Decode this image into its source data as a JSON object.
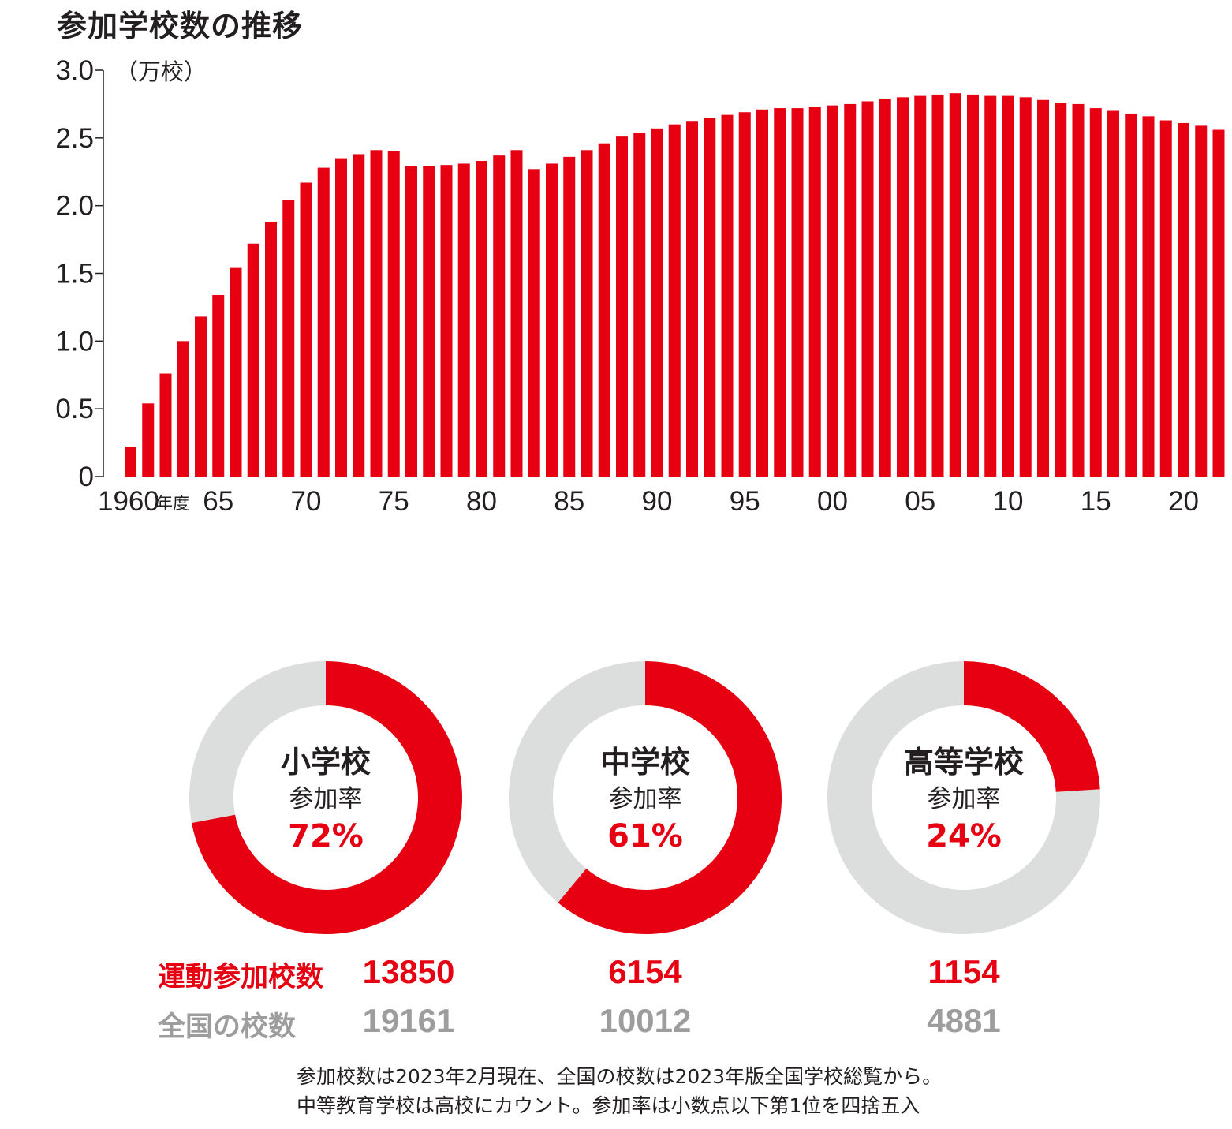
{
  "chart_data": [
    {
      "type": "bar",
      "title": "参加学校数の推移",
      "unit": "（万校）",
      "xlabel_suffix": "年度",
      "ylim": [
        0,
        3.0
      ],
      "yticks": [
        "0",
        "0.5",
        "1.0",
        "1.5",
        "2.0",
        "2.5",
        "3.0"
      ],
      "xtick_labels": [
        "1960",
        "65",
        "70",
        "75",
        "80",
        "85",
        "90",
        "95",
        "00",
        "05",
        "10",
        "15",
        "20"
      ],
      "categories": [
        1960,
        1961,
        1962,
        1963,
        1964,
        1965,
        1966,
        1967,
        1968,
        1969,
        1970,
        1971,
        1972,
        1973,
        1974,
        1975,
        1976,
        1977,
        1978,
        1979,
        1980,
        1981,
        1982,
        1983,
        1984,
        1985,
        1986,
        1987,
        1988,
        1989,
        1990,
        1991,
        1992,
        1993,
        1994,
        1995,
        1996,
        1997,
        1998,
        1999,
        2000,
        2001,
        2002,
        2003,
        2004,
        2005,
        2006,
        2007,
        2008,
        2009,
        2010,
        2011,
        2012,
        2013,
        2014,
        2015,
        2016,
        2017,
        2018,
        2019,
        2020,
        2021,
        2022
      ],
      "values": [
        0.22,
        0.54,
        0.76,
        1.0,
        1.18,
        1.34,
        1.54,
        1.72,
        1.88,
        2.04,
        2.17,
        2.28,
        2.35,
        2.38,
        2.41,
        2.4,
        2.29,
        2.29,
        2.3,
        2.31,
        2.33,
        2.37,
        2.41,
        2.27,
        2.31,
        2.36,
        2.41,
        2.46,
        2.51,
        2.54,
        2.57,
        2.6,
        2.62,
        2.65,
        2.67,
        2.69,
        2.71,
        2.72,
        2.72,
        2.73,
        2.74,
        2.75,
        2.77,
        2.79,
        2.8,
        2.81,
        2.82,
        2.83,
        2.82,
        2.81,
        2.81,
        2.8,
        2.78,
        2.76,
        2.75,
        2.72,
        2.7,
        2.68,
        2.66,
        2.63,
        2.61,
        2.59,
        2.56
      ],
      "color": "#e60012"
    },
    {
      "type": "pie",
      "slices": [
        {
          "name": "小学校",
          "rate_label": "参加率",
          "rate_text": "72%",
          "rate": 0.72,
          "participating": "13850",
          "total": "19161"
        },
        {
          "name": "中学校",
          "rate_label": "参加率",
          "rate_text": "61%",
          "rate": 0.61,
          "participating": "6154",
          "total": "10012"
        },
        {
          "name": "高等学校",
          "rate_label": "参加率",
          "rate_text": "24%",
          "rate": 0.24,
          "participating": "1154",
          "total": "4881"
        }
      ],
      "colors": {
        "participating": "#e60012",
        "remaining": "#dcdddd"
      }
    }
  ],
  "rows": {
    "participating_label": "運動参加校数",
    "total_label": "全国の校数"
  },
  "note": {
    "line1": "参加校数は2023年2月現在、全国の校数は2023年版全国学校総覧から。",
    "line2": "中等教育学校は高校にカウント。参加率は小数点以下第1位を四捨五入"
  }
}
